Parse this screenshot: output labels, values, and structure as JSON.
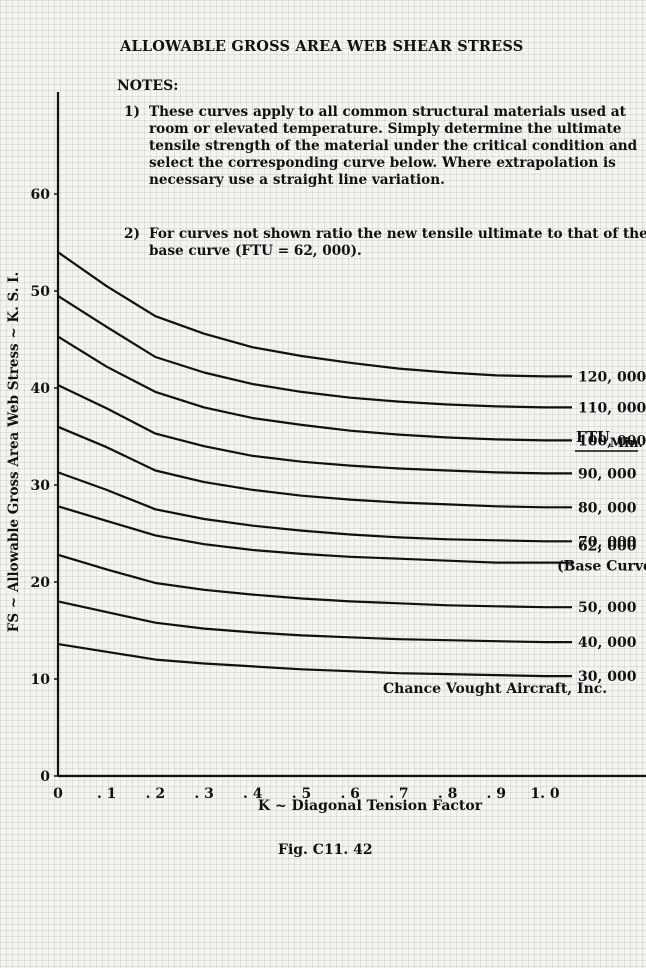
{
  "title": "ALLOWABLE GROSS AREA WEB SHEAR STRESS",
  "notes": {
    "heading": "NOTES:",
    "items": [
      {
        "num": "1)",
        "text": "These curves apply to all common structural materials used at room or elevated temperature.  Simply determine the ultimate tensile strength of the material under the critical condition and select the corresponding curve below.  Where extrapolation is necessary use a straight line variation."
      },
      {
        "num": "2)",
        "text": "For curves not shown ratio the new tensile ultimate to that of the base curve (FTU = 62, 000)."
      }
    ]
  },
  "credit": "Chance Vought Aircraft, Inc.",
  "caption": "Fig. C11. 42",
  "colors": {
    "ink": "#111111",
    "paper": "#f4f4f1",
    "grid": "#d8d8d4"
  },
  "chart_data": {
    "type": "line",
    "xlabel": "K ~ Diagonal Tension Factor",
    "ylabel": "FS ~ Allowable Gross Area Web Stress ~ K. S. I.",
    "xlim": [
      0,
      1.25
    ],
    "ylim": [
      0,
      70
    ],
    "x_ticks": [
      {
        "value": 0,
        "label": "0"
      },
      {
        "value": 0.1,
        "label": ". 1"
      },
      {
        "value": 0.2,
        "label": ". 2"
      },
      {
        "value": 0.3,
        "label": ". 3"
      },
      {
        "value": 0.4,
        "label": ". 4"
      },
      {
        "value": 0.5,
        "label": ". 5"
      },
      {
        "value": 0.6,
        "label": ". 6"
      },
      {
        "value": 0.7,
        "label": ". 7"
      },
      {
        "value": 0.8,
        "label": ". 8"
      },
      {
        "value": 0.9,
        "label": ". 9"
      },
      {
        "value": 1.0,
        "label": "1. 0"
      }
    ],
    "y_ticks": [
      {
        "value": 0,
        "label": "0"
      },
      {
        "value": 10,
        "label": "10"
      },
      {
        "value": 20,
        "label": "20"
      },
      {
        "value": 30,
        "label": "30"
      },
      {
        "value": 40,
        "label": "40"
      },
      {
        "value": 50,
        "label": "50"
      },
      {
        "value": 60,
        "label": "60"
      }
    ],
    "legend_title": "FTUMin.",
    "grid": true,
    "x": [
      0,
      0.1,
      0.2,
      0.3,
      0.4,
      0.5,
      0.6,
      0.7,
      0.8,
      0.9,
      1.0
    ],
    "series": [
      {
        "name": "120, 000",
        "values": [
          54,
          50.5,
          47.4,
          45.6,
          44.2,
          43.3,
          42.6,
          42.0,
          41.6,
          41.3,
          41.2
        ]
      },
      {
        "name": "110, 000",
        "values": [
          49.5,
          46.3,
          43.2,
          41.6,
          40.4,
          39.6,
          39.0,
          38.6,
          38.3,
          38.1,
          38.0
        ]
      },
      {
        "name": "100, 000",
        "values": [
          45.3,
          42.2,
          39.6,
          38.0,
          36.9,
          36.2,
          35.6,
          35.2,
          34.9,
          34.7,
          34.6
        ]
      },
      {
        "name": "90, 000",
        "values": [
          40.3,
          37.9,
          35.3,
          34.0,
          33.0,
          32.4,
          32.0,
          31.7,
          31.5,
          31.3,
          31.2
        ]
      },
      {
        "name": "80, 000",
        "values": [
          36.0,
          33.9,
          31.5,
          30.3,
          29.5,
          28.9,
          28.5,
          28.2,
          28.0,
          27.8,
          27.7
        ]
      },
      {
        "name": "70, 000",
        "values": [
          31.3,
          29.5,
          27.5,
          26.5,
          25.8,
          25.3,
          24.9,
          24.6,
          24.4,
          24.3,
          24.2
        ]
      },
      {
        "name": "62, 000",
        "label2": "(Base Curve)",
        "values": [
          27.8,
          26.3,
          24.8,
          23.9,
          23.3,
          22.9,
          22.6,
          22.4,
          22.2,
          22.0,
          22.0
        ]
      },
      {
        "name": "50, 000",
        "values": [
          22.8,
          21.3,
          19.9,
          19.2,
          18.7,
          18.3,
          18.0,
          17.8,
          17.6,
          17.5,
          17.4
        ]
      },
      {
        "name": "40, 000",
        "values": [
          18.0,
          16.9,
          15.8,
          15.2,
          14.8,
          14.5,
          14.3,
          14.1,
          14.0,
          13.9,
          13.8
        ]
      },
      {
        "name": "30, 000",
        "values": [
          13.6,
          12.8,
          12.0,
          11.6,
          11.3,
          11.0,
          10.8,
          10.6,
          10.5,
          10.4,
          10.3
        ]
      }
    ]
  }
}
